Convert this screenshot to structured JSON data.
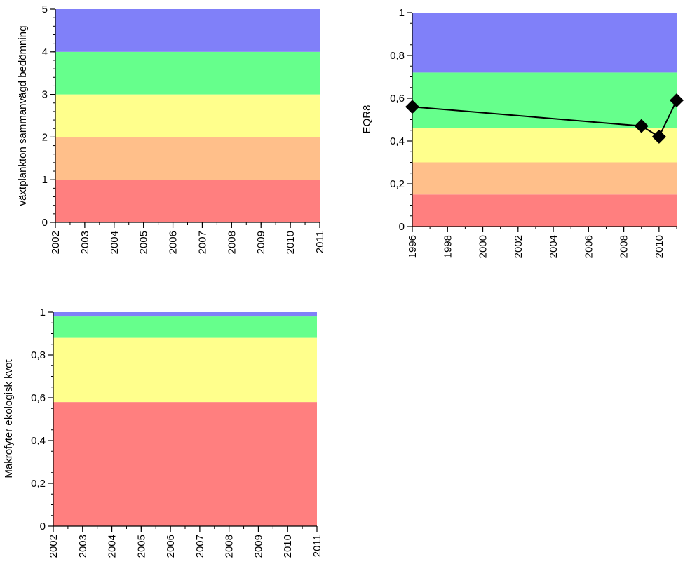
{
  "band_colors": {
    "bad": "#ff7f7f",
    "poor": "#ffbf8a",
    "moderate": "#ffff8c",
    "good": "#66ff8c",
    "high": "#8080f9"
  },
  "chart_data": [
    {
      "id": "phytoplankton",
      "type": "line",
      "ylabel": "växtplankton sammanvägd bedömning",
      "ylim": [
        0,
        5
      ],
      "xlim": [
        2002,
        2011
      ],
      "y_ticks": [
        "0",
        "1",
        "2",
        "3",
        "4",
        "5"
      ],
      "y_tick_values": [
        0,
        1,
        2,
        3,
        4,
        5
      ],
      "y_minor_step": 0.2,
      "x_ticks": [
        "2002",
        "2003",
        "2004",
        "2005",
        "2006",
        "2007",
        "2008",
        "2009",
        "2010",
        "2011"
      ],
      "x_tick_values": [
        2002,
        2003,
        2004,
        2005,
        2006,
        2007,
        2008,
        2009,
        2010,
        2011
      ],
      "x_minor_step": 0.5,
      "bands": [
        {
          "from": 0,
          "to": 1,
          "color": "#ff7f7f"
        },
        {
          "from": 1,
          "to": 2,
          "color": "#ffbf8a"
        },
        {
          "from": 2,
          "to": 3,
          "color": "#ffff8c"
        },
        {
          "from": 3,
          "to": 4,
          "color": "#66ff8c"
        },
        {
          "from": 4,
          "to": 5,
          "color": "#8080f9"
        }
      ],
      "series": []
    },
    {
      "id": "eqr8",
      "type": "line",
      "ylabel": "EQR8",
      "ylim": [
        0,
        1
      ],
      "xlim": [
        1996,
        2011
      ],
      "y_ticks": [
        "0",
        "0,2",
        "0,4",
        "0,6",
        "0,8",
        "1"
      ],
      "y_tick_values": [
        0,
        0.2,
        0.4,
        0.6,
        0.8,
        1
      ],
      "y_minor_step": 0.05,
      "x_ticks": [
        "1996",
        "1998",
        "2000",
        "2002",
        "2004",
        "2006",
        "2008",
        "2010"
      ],
      "x_tick_values": [
        1996,
        1998,
        2000,
        2002,
        2004,
        2006,
        2008,
        2010
      ],
      "x_minor_step": 1,
      "bands": [
        {
          "from": 0,
          "to": 0.15,
          "color": "#ff7f7f"
        },
        {
          "from": 0.15,
          "to": 0.3,
          "color": "#ffbf8a"
        },
        {
          "from": 0.3,
          "to": 0.46,
          "color": "#ffff8c"
        },
        {
          "from": 0.46,
          "to": 0.72,
          "color": "#66ff8c"
        },
        {
          "from": 0.72,
          "to": 1,
          "color": "#8080f9"
        }
      ],
      "series": [
        {
          "x": [
            1996,
            2009,
            2010,
            2011
          ],
          "y": [
            0.56,
            0.47,
            0.42,
            0.59
          ],
          "marker": "diamond",
          "color": "#000000"
        }
      ]
    },
    {
      "id": "macrophytes",
      "type": "line",
      "ylabel": "Makrofyter ekologisk kvot",
      "ylim": [
        0,
        1
      ],
      "xlim": [
        2002,
        2011
      ],
      "y_ticks": [
        "0",
        "0,2",
        "0,4",
        "0,6",
        "0,8",
        "1"
      ],
      "y_tick_values": [
        0,
        0.2,
        0.4,
        0.6,
        0.8,
        1
      ],
      "y_minor_step": 0.05,
      "x_ticks": [
        "2002",
        "2003",
        "2004",
        "2005",
        "2006",
        "2007",
        "2008",
        "2009",
        "2010",
        "2011"
      ],
      "x_tick_values": [
        2002,
        2003,
        2004,
        2005,
        2006,
        2007,
        2008,
        2009,
        2010,
        2011
      ],
      "x_minor_step": 0.5,
      "bands": [
        {
          "from": 0,
          "to": 0.58,
          "color": "#ff7f7f"
        },
        {
          "from": 0.58,
          "to": 0.88,
          "color": "#ffff8c"
        },
        {
          "from": 0.88,
          "to": 0.98,
          "color": "#66ff8c"
        },
        {
          "from": 0.98,
          "to": 1,
          "color": "#8080f9"
        }
      ],
      "series": []
    }
  ]
}
